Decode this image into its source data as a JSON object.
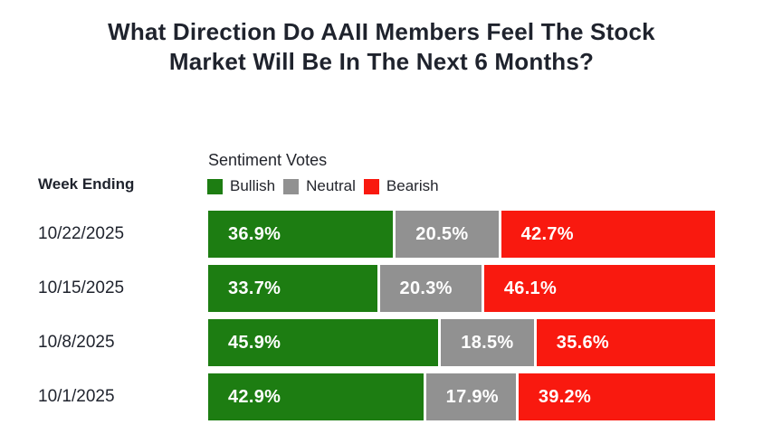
{
  "title": "What Direction Do AAII Members Feel The Stock Market Will Be In The Next 6 Months?",
  "left_header": "Week Ending",
  "chart_header": "Sentiment Votes",
  "colors": {
    "bullish": "#1d7d12",
    "neutral": "#919191",
    "bearish": "#f9190f",
    "title_text": "#1f232d",
    "bar_value_text": "#ffffff",
    "background": "#ffffff"
  },
  "legend": [
    {
      "label": "Bullish",
      "color": "#1d7d12"
    },
    {
      "label": "Neutral",
      "color": "#919191"
    },
    {
      "label": "Bearish",
      "color": "#f9190f"
    }
  ],
  "chart_data": {
    "type": "bar",
    "orientation": "horizontal-stacked",
    "title": "What Direction Do AAII Members Feel The Stock Market Will Be In The Next 6 Months?",
    "categories": [
      "10/22/2025",
      "10/15/2025",
      "10/8/2025",
      "10/1/2025"
    ],
    "series": [
      {
        "name": "Bullish",
        "color": "#1d7d12",
        "values": [
          36.9,
          33.7,
          45.9,
          42.9
        ]
      },
      {
        "name": "Neutral",
        "color": "#919191",
        "values": [
          20.5,
          20.3,
          18.5,
          17.9
        ]
      },
      {
        "name": "Bearish",
        "color": "#f9190f",
        "values": [
          42.7,
          46.1,
          35.6,
          39.2
        ]
      }
    ],
    "value_suffix": "%",
    "xlim": [
      0,
      100
    ],
    "grid": false,
    "legend_position": "top-left",
    "value_labels": "inside-start"
  }
}
